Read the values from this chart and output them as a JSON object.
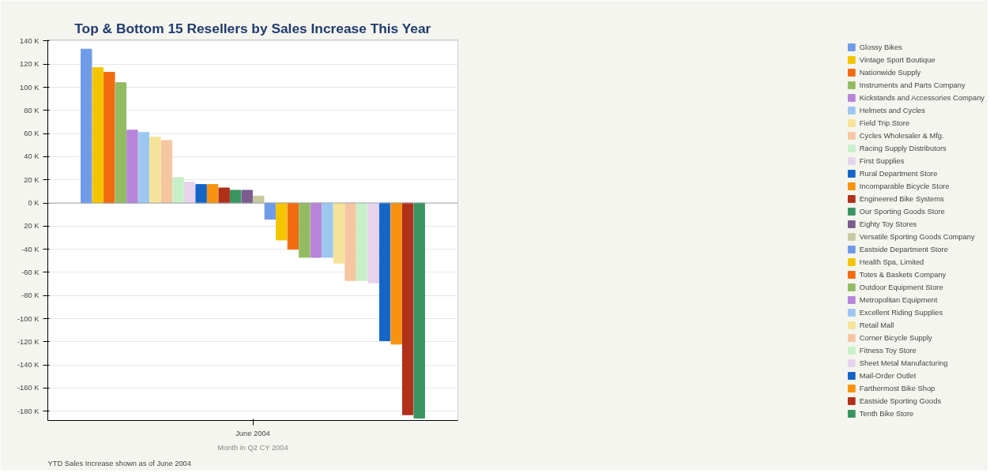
{
  "chart_data": {
    "type": "bar",
    "title": "Top & Bottom 15 Resellers by Sales Increase This Year",
    "categories": [
      "June 2004"
    ],
    "xlabel": "Month in Q2 CY 2004",
    "annotations": [
      "YTD Sales Increase shown as of June 2004"
    ],
    "ylim": [
      -188000,
      141000
    ],
    "yticks": [
      {
        "value": 140000,
        "label": "140 K"
      },
      {
        "value": 120000,
        "label": "120 K"
      },
      {
        "value": 100000,
        "label": "100 K"
      },
      {
        "value": 80000,
        "label": "80 K"
      },
      {
        "value": 60000,
        "label": "60 K"
      },
      {
        "value": 40000,
        "label": "40 K"
      },
      {
        "value": 20000,
        "label": "20 K"
      },
      {
        "value": 0,
        "label": "0 K"
      },
      {
        "value": -20000,
        "label": "20 K"
      },
      {
        "value": -40000,
        "label": "-40 K"
      },
      {
        "value": -60000,
        "label": "-60 K"
      },
      {
        "value": -80000,
        "label": "-80 K"
      },
      {
        "value": -100000,
        "label": "-100 K"
      },
      {
        "value": -120000,
        "label": "-120 K"
      },
      {
        "value": -140000,
        "label": "-140 K"
      },
      {
        "value": -160000,
        "label": "-160 K"
      },
      {
        "value": -180000,
        "label": "-180 K"
      }
    ],
    "grid": "y",
    "legend": "right",
    "series": [
      {
        "name": "Glossy Bikes",
        "color": "#6f9be8",
        "values": [
          133000
        ]
      },
      {
        "name": "Vintage Sport Boutique",
        "color": "#f5c400",
        "values": [
          117000
        ]
      },
      {
        "name": "Nationwide Supply",
        "color": "#f26b0f",
        "values": [
          113000
        ]
      },
      {
        "name": "Instruments and Parts Company",
        "color": "#92bb62",
        "values": [
          104000
        ]
      },
      {
        "name": "Kickstands and Accessories Company",
        "color": "#b784d8",
        "values": [
          63000
        ]
      },
      {
        "name": "Helmets and Cycles",
        "color": "#9cc7f0",
        "values": [
          61000
        ]
      },
      {
        "name": "Field Trip Store",
        "color": "#f5e39a",
        "values": [
          57000
        ]
      },
      {
        "name": "Cycles Wholesaler & Mfg.",
        "color": "#f5c6a0",
        "values": [
          54000
        ]
      },
      {
        "name": "Racing Supply Distributors",
        "color": "#c8f0c8",
        "values": [
          22000
        ]
      },
      {
        "name": "First Supplies",
        "color": "#e6d4ee",
        "values": [
          18000
        ]
      },
      {
        "name": "Rural Department Store",
        "color": "#1366c8",
        "values": [
          16000
        ]
      },
      {
        "name": "Incomparable Bicycle Store",
        "color": "#f7930f",
        "values": [
          16000
        ]
      },
      {
        "name": "Engineered Bike Systems",
        "color": "#b0301a",
        "values": [
          13000
        ]
      },
      {
        "name": "Our Sporting Goods Store",
        "color": "#3a9460",
        "values": [
          11000
        ]
      },
      {
        "name": "Eighty Toy Stores",
        "color": "#7a5d8e",
        "values": [
          11000
        ]
      },
      {
        "name": "Versatile Sporting Goods Company",
        "color": "#c9c9a0",
        "values": [
          6000
        ]
      },
      {
        "name": "Eastside Department Store",
        "color": "#6f9be8",
        "values": [
          -14000
        ]
      },
      {
        "name": "Health Spa, Limited",
        "color": "#f5c400",
        "values": [
          -32000
        ]
      },
      {
        "name": "Totes & Baskets Company",
        "color": "#f26b0f",
        "values": [
          -40000
        ]
      },
      {
        "name": "Outdoor Equipment Store",
        "color": "#92bb62",
        "values": [
          -47000
        ]
      },
      {
        "name": "Metropolitan Equipment",
        "color": "#b784d8",
        "values": [
          -47000
        ]
      },
      {
        "name": "Excellent Riding Supplies",
        "color": "#9cc7f0",
        "values": [
          -47000
        ]
      },
      {
        "name": "Retail Mall",
        "color": "#f5e39a",
        "values": [
          -52000
        ]
      },
      {
        "name": "Corner Bicycle Supply",
        "color": "#f5c6a0",
        "values": [
          -67000
        ]
      },
      {
        "name": "Fitness Toy Store",
        "color": "#c8f0c8",
        "values": [
          -67000
        ]
      },
      {
        "name": "Sheet Metal Manufacturing",
        "color": "#e6d4ee",
        "values": [
          -69000
        ]
      },
      {
        "name": "Mail-Order Outlet",
        "color": "#1366c8",
        "values": [
          -119000
        ]
      },
      {
        "name": "Farthermost Bike Shop",
        "color": "#f7930f",
        "values": [
          -122000
        ]
      },
      {
        "name": "Eastside Sporting Goods",
        "color": "#b0301a",
        "values": [
          -183000
        ]
      },
      {
        "name": "Tenth Bike Store",
        "color": "#3a9460",
        "values": [
          -186000
        ]
      }
    ]
  }
}
